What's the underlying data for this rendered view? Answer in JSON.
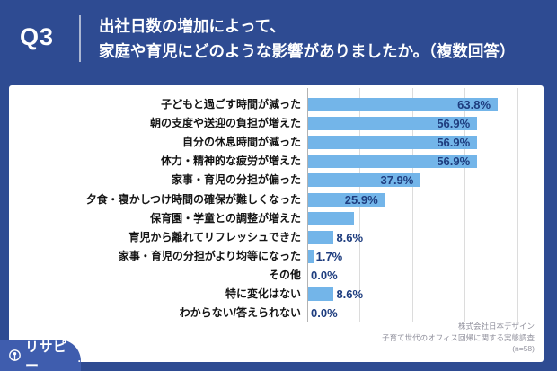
{
  "header": {
    "question_no": "Q3",
    "title_line1": "出社日数の増加によって、",
    "title_line2": "家庭や育児にどのような影響がありましたか。（複数回答）"
  },
  "chart_data": {
    "type": "bar",
    "orientation": "horizontal",
    "title": "出社日数の増加によって、家庭や育児にどのような影響がありましたか。（複数回答）",
    "categories": [
      "子どもと過ごす時間が減った",
      "朝の支度や送迎の負担が増えた",
      "自分の休息時間が減った",
      "体力・精神的な疲労が増えた",
      "家事・育児の分担が偏った",
      "夕食・寝かしつけ時間の確保が難しくなった",
      "保育園・学童との調整が増えた",
      "育児から離れてリフレッシュできた",
      "家事・育児の分担がより均等になった",
      "その他",
      "特に変化はない",
      "わからない/答えられない"
    ],
    "values": [
      63.8,
      56.9,
      56.9,
      56.9,
      37.9,
      25.9,
      15.5,
      8.6,
      1.7,
      0.0,
      8.6,
      0.0
    ],
    "value_labels": [
      "63.8%",
      "56.9%",
      "56.9%",
      "56.9%",
      "37.9%",
      "25.9%",
      "",
      "8.6%",
      "1.7%",
      "0.0%",
      "8.6%",
      "0.0%"
    ],
    "xlim": [
      0,
      78
    ],
    "grid": true,
    "gridline_pcts": [
      17.6,
      35.3,
      52.9,
      70.6
    ],
    "inside_label_min_pct": 20,
    "bar_color": "#73b5e9",
    "value_label_color": "#1e3d7f",
    "sample_size": "(n=58)"
  },
  "footer": {
    "logo_text": "リサピー",
    "logo_suffix": ".",
    "source_lines": [
      "株式会社日本デザイン",
      "子育て世代のオフィス回帰に関する実態調査",
      "(n=58)"
    ]
  },
  "colors": {
    "background": "#2e4b92",
    "panel": "#ffffff",
    "logo_tab": "#3f5dae",
    "grid_line": "#dcdcdc",
    "axis_line": "#b3b3b3",
    "bar": "#73b5e9",
    "value_label": "#1e3d7f",
    "header_text": "#ffffff"
  }
}
